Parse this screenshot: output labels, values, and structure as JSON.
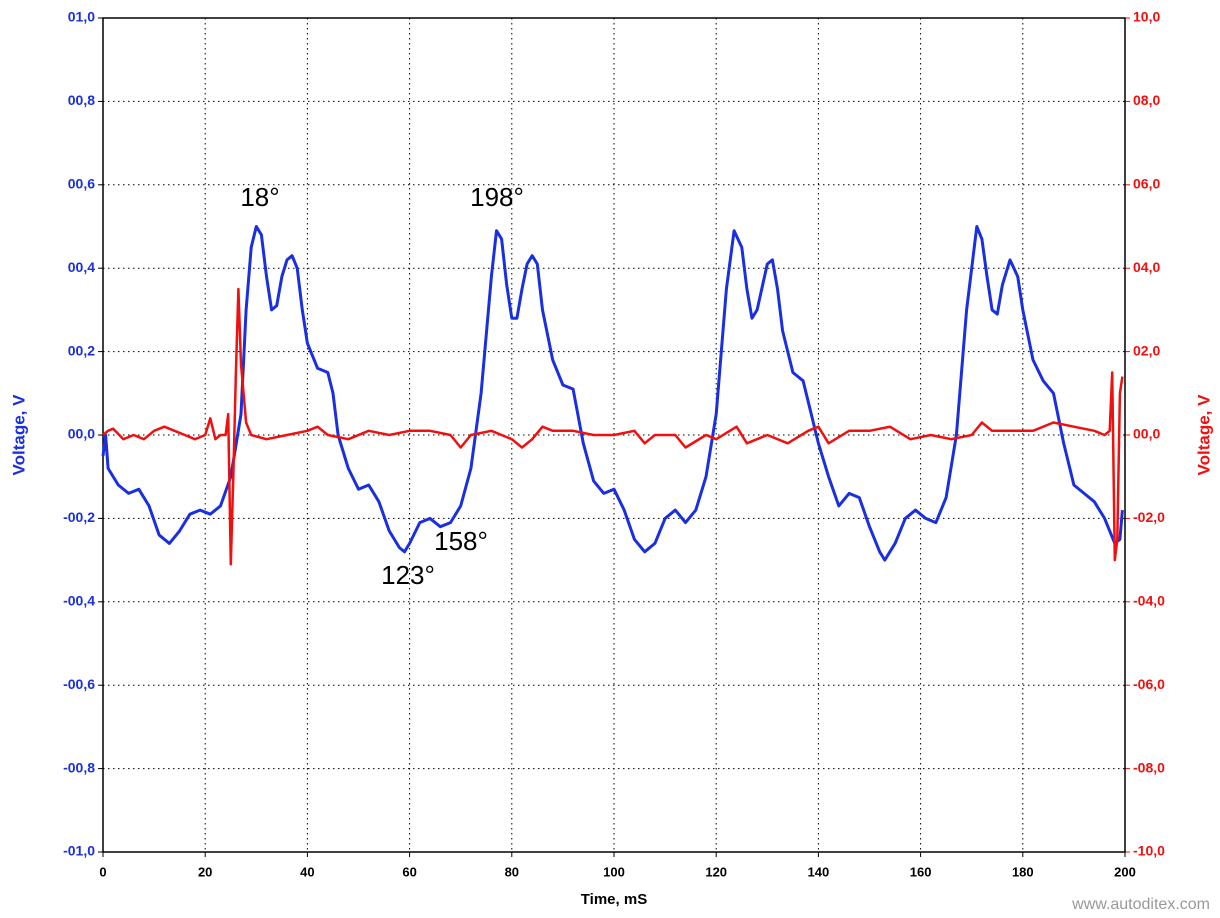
{
  "chart_data": {
    "type": "line",
    "x_label": "Time, mS",
    "y_label": "Voltage, V",
    "y2_label": "Voltage, V",
    "xlim": [
      0,
      200
    ],
    "xticks": [
      0,
      20,
      40,
      60,
      80,
      100,
      120,
      140,
      160,
      180,
      200
    ],
    "ylim": [
      -1,
      1
    ],
    "yticks": [
      {
        "value": -1,
        "label": "-01,0"
      },
      {
        "value": -0.8,
        "label": "-00,8"
      },
      {
        "value": -0.6,
        "label": "-00,6"
      },
      {
        "value": -0.4,
        "label": "-00,4"
      },
      {
        "value": -0.2,
        "label": "-00,2"
      },
      {
        "value": 0,
        "label": "00,0"
      },
      {
        "value": 0.2,
        "label": "00,2"
      },
      {
        "value": 0.4,
        "label": "00,4"
      },
      {
        "value": 0.6,
        "label": "00,6"
      },
      {
        "value": 0.8,
        "label": "00,8"
      },
      {
        "value": 1,
        "label": "01,0"
      }
    ],
    "y2lim": [
      -10,
      10
    ],
    "y2ticks": [
      {
        "value": -10,
        "label": "-10,0"
      },
      {
        "value": -8,
        "label": "-08,0"
      },
      {
        "value": -6,
        "label": "-06,0"
      },
      {
        "value": -4,
        "label": "-04,0"
      },
      {
        "value": -2,
        "label": "-02,0"
      },
      {
        "value": 0,
        "label": "00,0"
      },
      {
        "value": 2,
        "label": "02,0"
      },
      {
        "value": 4,
        "label": "04,0"
      },
      {
        "value": 6,
        "label": "06,0"
      },
      {
        "value": 8,
        "label": "08,0"
      },
      {
        "value": 10,
        "label": "10,0"
      }
    ],
    "grid": true,
    "y_color": "#1a2fe0",
    "y2_color": "#f01010",
    "annotations": [
      "18°",
      "198°",
      "123°",
      "158°"
    ],
    "watermark": "www.autoditex.com",
    "series": [
      {
        "color": "#1a2fe0",
        "x": [
          0,
          0.5,
          1,
          3,
          5,
          7,
          9,
          11,
          13,
          15,
          17,
          19,
          21,
          23,
          25,
          27,
          28,
          29,
          30,
          31,
          32,
          33,
          34,
          35,
          36,
          37,
          38,
          39,
          40,
          42,
          44,
          45,
          46,
          48,
          50,
          52,
          54,
          56,
          58,
          59,
          60,
          62,
          64,
          66,
          68,
          70,
          72,
          74,
          76,
          77,
          78,
          79,
          80,
          81,
          82,
          83,
          84,
          85,
          86,
          88,
          90,
          92,
          94,
          96,
          98,
          100,
          102,
          104,
          106,
          108,
          110,
          112,
          114,
          116,
          118,
          120,
          122,
          123.5,
          125,
          126,
          127,
          128,
          130,
          131,
          132,
          133,
          135,
          137,
          138,
          140,
          142,
          144,
          146,
          148,
          150,
          152,
          153,
          155,
          157,
          159,
          161,
          163,
          165,
          167,
          169,
          171,
          172,
          173,
          174,
          175,
          176,
          177.5,
          179,
          180,
          182,
          184,
          186,
          188,
          190,
          192,
          194,
          196,
          198,
          199,
          199.5
        ],
        "values": [
          -0.05,
          0.0,
          -0.08,
          -0.12,
          -0.14,
          -0.13,
          -0.17,
          -0.24,
          -0.26,
          -0.23,
          -0.19,
          -0.18,
          -0.19,
          -0.17,
          -0.1,
          0.05,
          0.3,
          0.45,
          0.5,
          0.48,
          0.38,
          0.3,
          0.31,
          0.38,
          0.42,
          0.43,
          0.4,
          0.3,
          0.22,
          0.16,
          0.15,
          0.1,
          0.0,
          -0.08,
          -0.13,
          -0.12,
          -0.16,
          -0.23,
          -0.27,
          -0.28,
          -0.26,
          -0.21,
          -0.2,
          -0.22,
          -0.21,
          -0.17,
          -0.08,
          0.1,
          0.38,
          0.49,
          0.47,
          0.36,
          0.28,
          0.28,
          0.35,
          0.41,
          0.43,
          0.41,
          0.3,
          0.18,
          0.12,
          0.11,
          -0.02,
          -0.11,
          -0.14,
          -0.13,
          -0.18,
          -0.25,
          -0.28,
          -0.26,
          -0.2,
          -0.18,
          -0.21,
          -0.18,
          -0.1,
          0.05,
          0.35,
          0.49,
          0.45,
          0.35,
          0.28,
          0.3,
          0.41,
          0.42,
          0.35,
          0.25,
          0.15,
          0.13,
          0.08,
          -0.02,
          -0.1,
          -0.17,
          -0.14,
          -0.15,
          -0.22,
          -0.28,
          -0.3,
          -0.26,
          -0.2,
          -0.18,
          -0.2,
          -0.21,
          -0.15,
          0.0,
          0.3,
          0.5,
          0.47,
          0.38,
          0.3,
          0.29,
          0.36,
          0.42,
          0.38,
          0.3,
          0.18,
          0.13,
          0.1,
          -0.02,
          -0.12,
          -0.14,
          -0.16,
          -0.2,
          -0.26,
          -0.25,
          -0.18
        ]
      },
      {
        "color": "#f01010",
        "axis": "y2",
        "x": [
          0,
          1,
          2,
          4,
          6,
          8,
          10,
          12,
          14,
          16,
          18,
          20,
          21,
          22,
          23,
          24,
          24.5,
          25,
          25.5,
          26,
          26.5,
          27,
          28,
          29,
          32,
          36,
          40,
          42,
          44,
          48,
          52,
          56,
          60,
          64,
          68,
          70,
          72,
          76,
          80,
          82,
          84,
          86,
          88,
          92,
          96,
          100,
          104,
          106,
          108,
          112,
          114,
          118,
          120,
          124,
          126,
          130,
          134,
          138,
          140,
          142,
          146,
          150,
          154,
          158,
          162,
          166,
          170,
          172,
          174,
          178,
          182,
          186,
          190,
          194,
          196,
          197,
          197.5,
          198,
          198.5,
          199,
          199.5
        ],
        "values": [
          0,
          0.1,
          0.15,
          -0.1,
          0.0,
          -0.1,
          0.1,
          0.2,
          0.1,
          0,
          -0.1,
          0,
          0.4,
          -0.1,
          0,
          0,
          0.5,
          -3.1,
          -1.0,
          1.5,
          3.5,
          1.7,
          0.3,
          0,
          -0.1,
          0,
          0.1,
          0.2,
          0,
          -0.1,
          0.1,
          0.0,
          0.1,
          0.1,
          0,
          -0.3,
          0,
          0.1,
          -0.1,
          -0.3,
          -0.1,
          0.2,
          0.1,
          0.1,
          0,
          0.0,
          0.1,
          -0.2,
          0,
          0,
          -0.3,
          0,
          -0.1,
          0.2,
          -0.2,
          0,
          -0.2,
          0.1,
          0.2,
          -0.2,
          0.1,
          0.1,
          0.2,
          -0.1,
          0,
          -0.1,
          0.0,
          0.3,
          0.1,
          0.1,
          0.1,
          0.3,
          0.2,
          0.1,
          0.0,
          0.1,
          1.5,
          -3.0,
          -2.5,
          1.0,
          1.4
        ]
      }
    ]
  }
}
